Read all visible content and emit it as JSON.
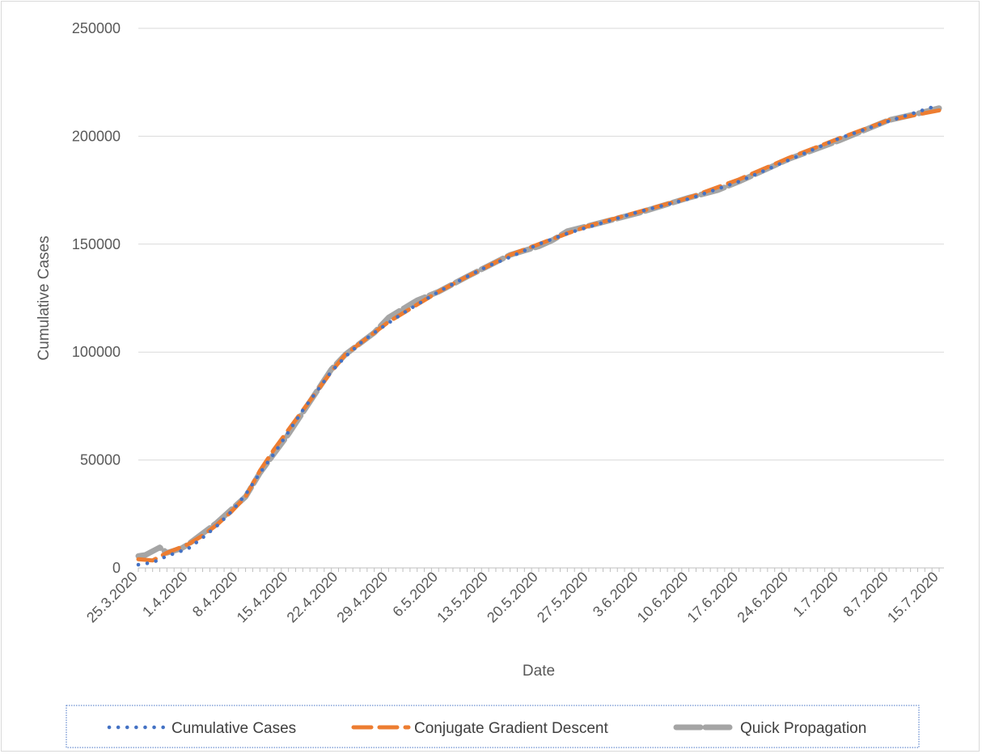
{
  "chart_data": {
    "type": "line",
    "title": "",
    "xlabel": "Date",
    "ylabel": "Cumulative Cases",
    "ylim": [
      0,
      250000
    ],
    "y_ticks": [
      "0",
      "50000",
      "100000",
      "150000",
      "200000",
      "250000"
    ],
    "x_ticks": [
      "25.3.2020",
      "1.4.2020",
      "8.4.2020",
      "15.4.2020",
      "22.4.2020",
      "29.4.2020",
      "6.5.2020",
      "13.5.2020",
      "20.5.2020",
      "27.5.2020",
      "3.6.2020",
      "10.6.2020",
      "17.6.2020",
      "24.6.2020",
      "1.7.2020",
      "8.7.2020",
      "15.7.2020"
    ],
    "x_domain": [
      "25.3.2020",
      "15.7.2020"
    ],
    "grid": "horizontal",
    "legend_position": "bottom",
    "series": [
      {
        "name": "Cumulative Cases",
        "color": "#4472c4",
        "style": "dotted",
        "points": [
          [
            "25.3.2020",
            1500
          ],
          [
            "27.3.2020",
            2500
          ],
          [
            "29.3.2020",
            5500
          ],
          [
            "1.4.2020",
            9000
          ],
          [
            "3.4.2020",
            14000
          ],
          [
            "5.4.2020",
            19500
          ],
          [
            "7.4.2020",
            26000
          ],
          [
            "9.4.2020",
            34000
          ],
          [
            "11.4.2020",
            44000
          ],
          [
            "13.4.2020",
            53000
          ],
          [
            "15.4.2020",
            63000
          ],
          [
            "17.4.2020",
            73000
          ],
          [
            "19.4.2020",
            82000
          ],
          [
            "21.4.2020",
            91000
          ],
          [
            "23.4.2020",
            98000
          ],
          [
            "25.4.2020",
            104000
          ],
          [
            "27.4.2020",
            109000
          ],
          [
            "29.4.2020",
            113500
          ],
          [
            "1.5.2020",
            118000
          ],
          [
            "3.5.2020",
            122000
          ],
          [
            "6.5.2020",
            128000
          ],
          [
            "10.5.2020",
            135000
          ],
          [
            "13.5.2020",
            140000
          ],
          [
            "16.5.2020",
            144000
          ],
          [
            "20.5.2020",
            150000
          ],
          [
            "24.5.2020",
            155000
          ],
          [
            "27.5.2020",
            158000
          ],
          [
            "3.6.2020",
            165000
          ],
          [
            "10.6.2020",
            171000
          ],
          [
            "17.6.2020",
            179000
          ],
          [
            "24.6.2020",
            189000
          ],
          [
            "1.7.2020",
            199000
          ],
          [
            "8.7.2020",
            207000
          ],
          [
            "15.7.2020",
            214500
          ]
        ]
      },
      {
        "name": "Conjugate Gradient Descent",
        "color": "#ed7d31",
        "style": "dashed",
        "points": [
          [
            "25.3.2020",
            4000
          ],
          [
            "27.3.2020",
            3500
          ],
          [
            "29.3.2020",
            7000
          ],
          [
            "1.4.2020",
            11000
          ],
          [
            "3.4.2020",
            15000
          ],
          [
            "5.4.2020",
            20000
          ],
          [
            "7.4.2020",
            26000
          ],
          [
            "9.4.2020",
            33000
          ],
          [
            "11.4.2020",
            45000
          ],
          [
            "13.4.2020",
            55000
          ],
          [
            "15.4.2020",
            64000
          ],
          [
            "17.4.2020",
            73000
          ],
          [
            "19.4.2020",
            82000
          ],
          [
            "21.4.2020",
            91000
          ],
          [
            "23.4.2020",
            99000
          ],
          [
            "25.4.2020",
            104000
          ],
          [
            "27.4.2020",
            109000
          ],
          [
            "29.4.2020",
            114000
          ],
          [
            "1.5.2020",
            118000
          ],
          [
            "3.5.2020",
            122000
          ],
          [
            "6.5.2020",
            128000
          ],
          [
            "10.5.2020",
            135000
          ],
          [
            "13.5.2020",
            140000
          ],
          [
            "16.5.2020",
            145000
          ],
          [
            "20.5.2020",
            150000
          ],
          [
            "24.5.2020",
            155000
          ],
          [
            "27.5.2020",
            158500
          ],
          [
            "3.6.2020",
            165000
          ],
          [
            "10.6.2020",
            171500
          ],
          [
            "17.6.2020",
            180000
          ],
          [
            "24.6.2020",
            190000
          ],
          [
            "1.7.2020",
            199000
          ],
          [
            "8.7.2020",
            207500
          ],
          [
            "15.7.2020",
            212000
          ]
        ]
      },
      {
        "name": "Quick Propagation",
        "color": "#a5a5a5",
        "style": "solid",
        "points": [
          [
            "25.3.2020",
            5500
          ],
          [
            "26.3.2020",
            6000
          ],
          [
            "28.3.2020",
            9500
          ],
          [
            "29.3.2020",
            7000
          ],
          [
            "31.3.2020",
            9000
          ],
          [
            "1.4.2020",
            11000
          ],
          [
            "3.4.2020",
            16000
          ],
          [
            "5.4.2020",
            21000
          ],
          [
            "7.4.2020",
            27000
          ],
          [
            "9.4.2020",
            33000
          ],
          [
            "11.4.2020",
            44000
          ],
          [
            "13.4.2020",
            53000
          ],
          [
            "15.4.2020",
            62000
          ],
          [
            "17.4.2020",
            72000
          ],
          [
            "19.4.2020",
            82000
          ],
          [
            "21.4.2020",
            92000
          ],
          [
            "23.4.2020",
            99000
          ],
          [
            "25.4.2020",
            104000
          ],
          [
            "27.4.2020",
            109000
          ],
          [
            "29.4.2020",
            116000
          ],
          [
            "1.5.2020",
            120000
          ],
          [
            "3.5.2020",
            124000
          ],
          [
            "6.5.2020",
            128000
          ],
          [
            "10.5.2020",
            135000
          ],
          [
            "13.5.2020",
            140000
          ],
          [
            "16.5.2020",
            145000
          ],
          [
            "20.5.2020",
            149000
          ],
          [
            "22.5.2020",
            152000
          ],
          [
            "24.5.2020",
            156000
          ],
          [
            "27.5.2020",
            158500
          ],
          [
            "3.6.2020",
            164500
          ],
          [
            "10.6.2020",
            171500
          ],
          [
            "14.6.2020",
            175000
          ],
          [
            "17.6.2020",
            179000
          ],
          [
            "24.6.2020",
            189500
          ],
          [
            "1.7.2020",
            198000
          ],
          [
            "8.7.2020",
            207500
          ],
          [
            "12.7.2020",
            210500
          ],
          [
            "15.7.2020",
            213000
          ]
        ]
      }
    ]
  }
}
